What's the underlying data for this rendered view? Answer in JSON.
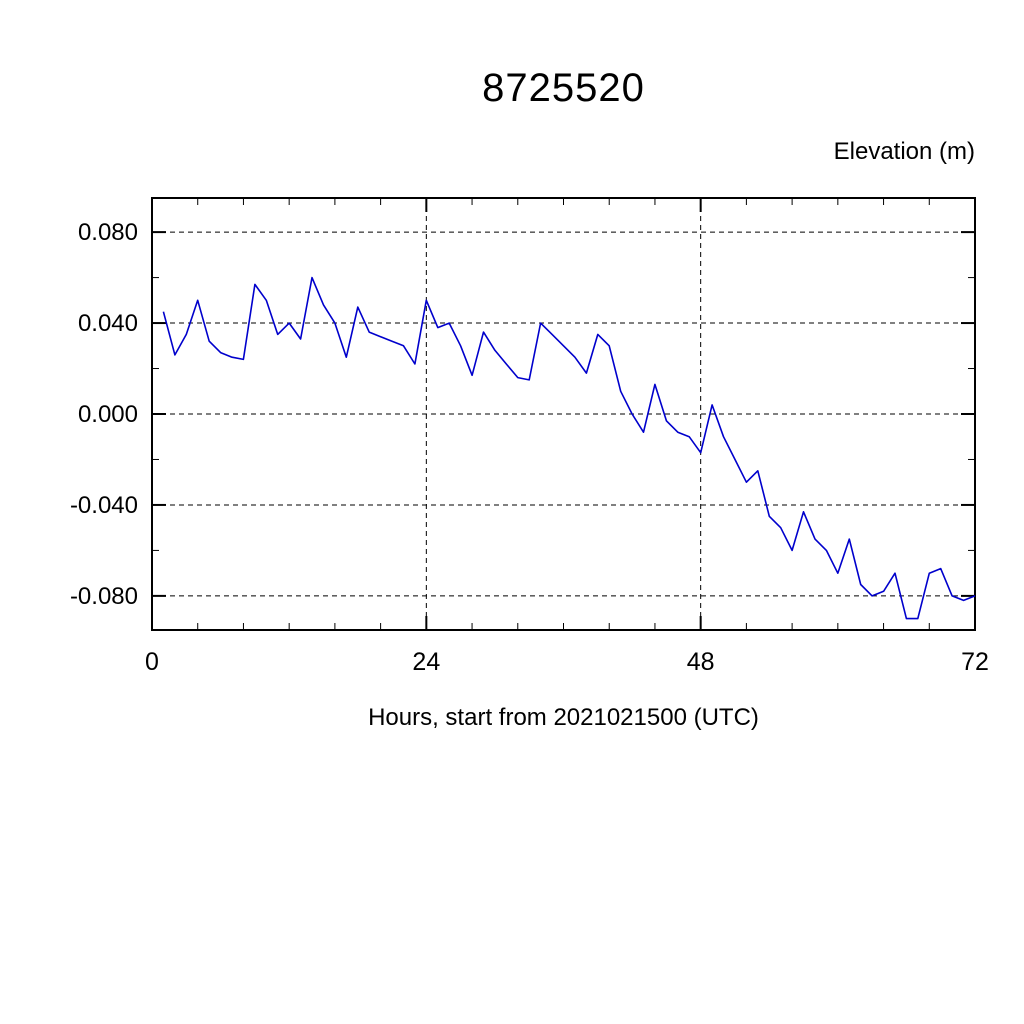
{
  "chart_data": {
    "type": "line",
    "title": "8725520",
    "ylabel": "Elevation (m)",
    "xlabel": "Hours, start from 2021021500 (UTC)",
    "xlim": [
      0,
      72
    ],
    "ylim": [
      -0.095,
      0.095
    ],
    "xticks_major": [
      0,
      24,
      48,
      72
    ],
    "xtick_labels": [
      "0",
      "24",
      "48",
      "72"
    ],
    "xtick_minor_step": 4,
    "yticks_major": [
      -0.08,
      -0.04,
      0.0,
      0.04,
      0.08
    ],
    "ytick_labels": [
      "-0.080",
      "-0.040",
      "0.000",
      "0.040",
      "0.080"
    ],
    "ytick_minor_step": 0.02,
    "grid": "dashed lines at major ticks; vertical gridlines at x=24,48; horizontal at all major y ticks",
    "legend": "none",
    "line_color": "#0000cc",
    "frame_color": "#000000",
    "series_name": "Elevation",
    "x": [
      1,
      2,
      3,
      4,
      5,
      6,
      7,
      8,
      9,
      10,
      11,
      12,
      13,
      14,
      15,
      16,
      17,
      18,
      19,
      20,
      21,
      22,
      23,
      24,
      25,
      26,
      27,
      28,
      29,
      30,
      31,
      32,
      33,
      34,
      35,
      36,
      37,
      38,
      39,
      40,
      41,
      42,
      43,
      44,
      45,
      46,
      47,
      48,
      49,
      50,
      51,
      52,
      53,
      54,
      55,
      56,
      57,
      58,
      59,
      60,
      61,
      62,
      63,
      64,
      65,
      66,
      67,
      68,
      69,
      70,
      71,
      72
    ],
    "y": [
      0.045,
      0.026,
      0.035,
      0.05,
      0.032,
      0.027,
      0.025,
      0.024,
      0.057,
      0.05,
      0.035,
      0.04,
      0.033,
      0.06,
      0.048,
      0.04,
      0.025,
      0.047,
      0.036,
      0.034,
      0.032,
      0.03,
      0.022,
      0.05,
      0.038,
      0.04,
      0.03,
      0.017,
      0.036,
      0.028,
      0.022,
      0.016,
      0.015,
      0.04,
      0.035,
      0.03,
      0.025,
      0.018,
      0.035,
      0.03,
      0.01,
      0.0,
      -0.008,
      0.013,
      -0.003,
      -0.008,
      -0.01,
      -0.017,
      0.004,
      -0.01,
      -0.02,
      -0.03,
      -0.025,
      -0.045,
      -0.05,
      -0.06,
      -0.043,
      -0.055,
      -0.06,
      -0.07,
      -0.055,
      -0.075,
      -0.08,
      -0.078,
      -0.07,
      -0.09,
      -0.09,
      -0.07,
      -0.068,
      -0.08,
      -0.082,
      -0.08
    ]
  }
}
